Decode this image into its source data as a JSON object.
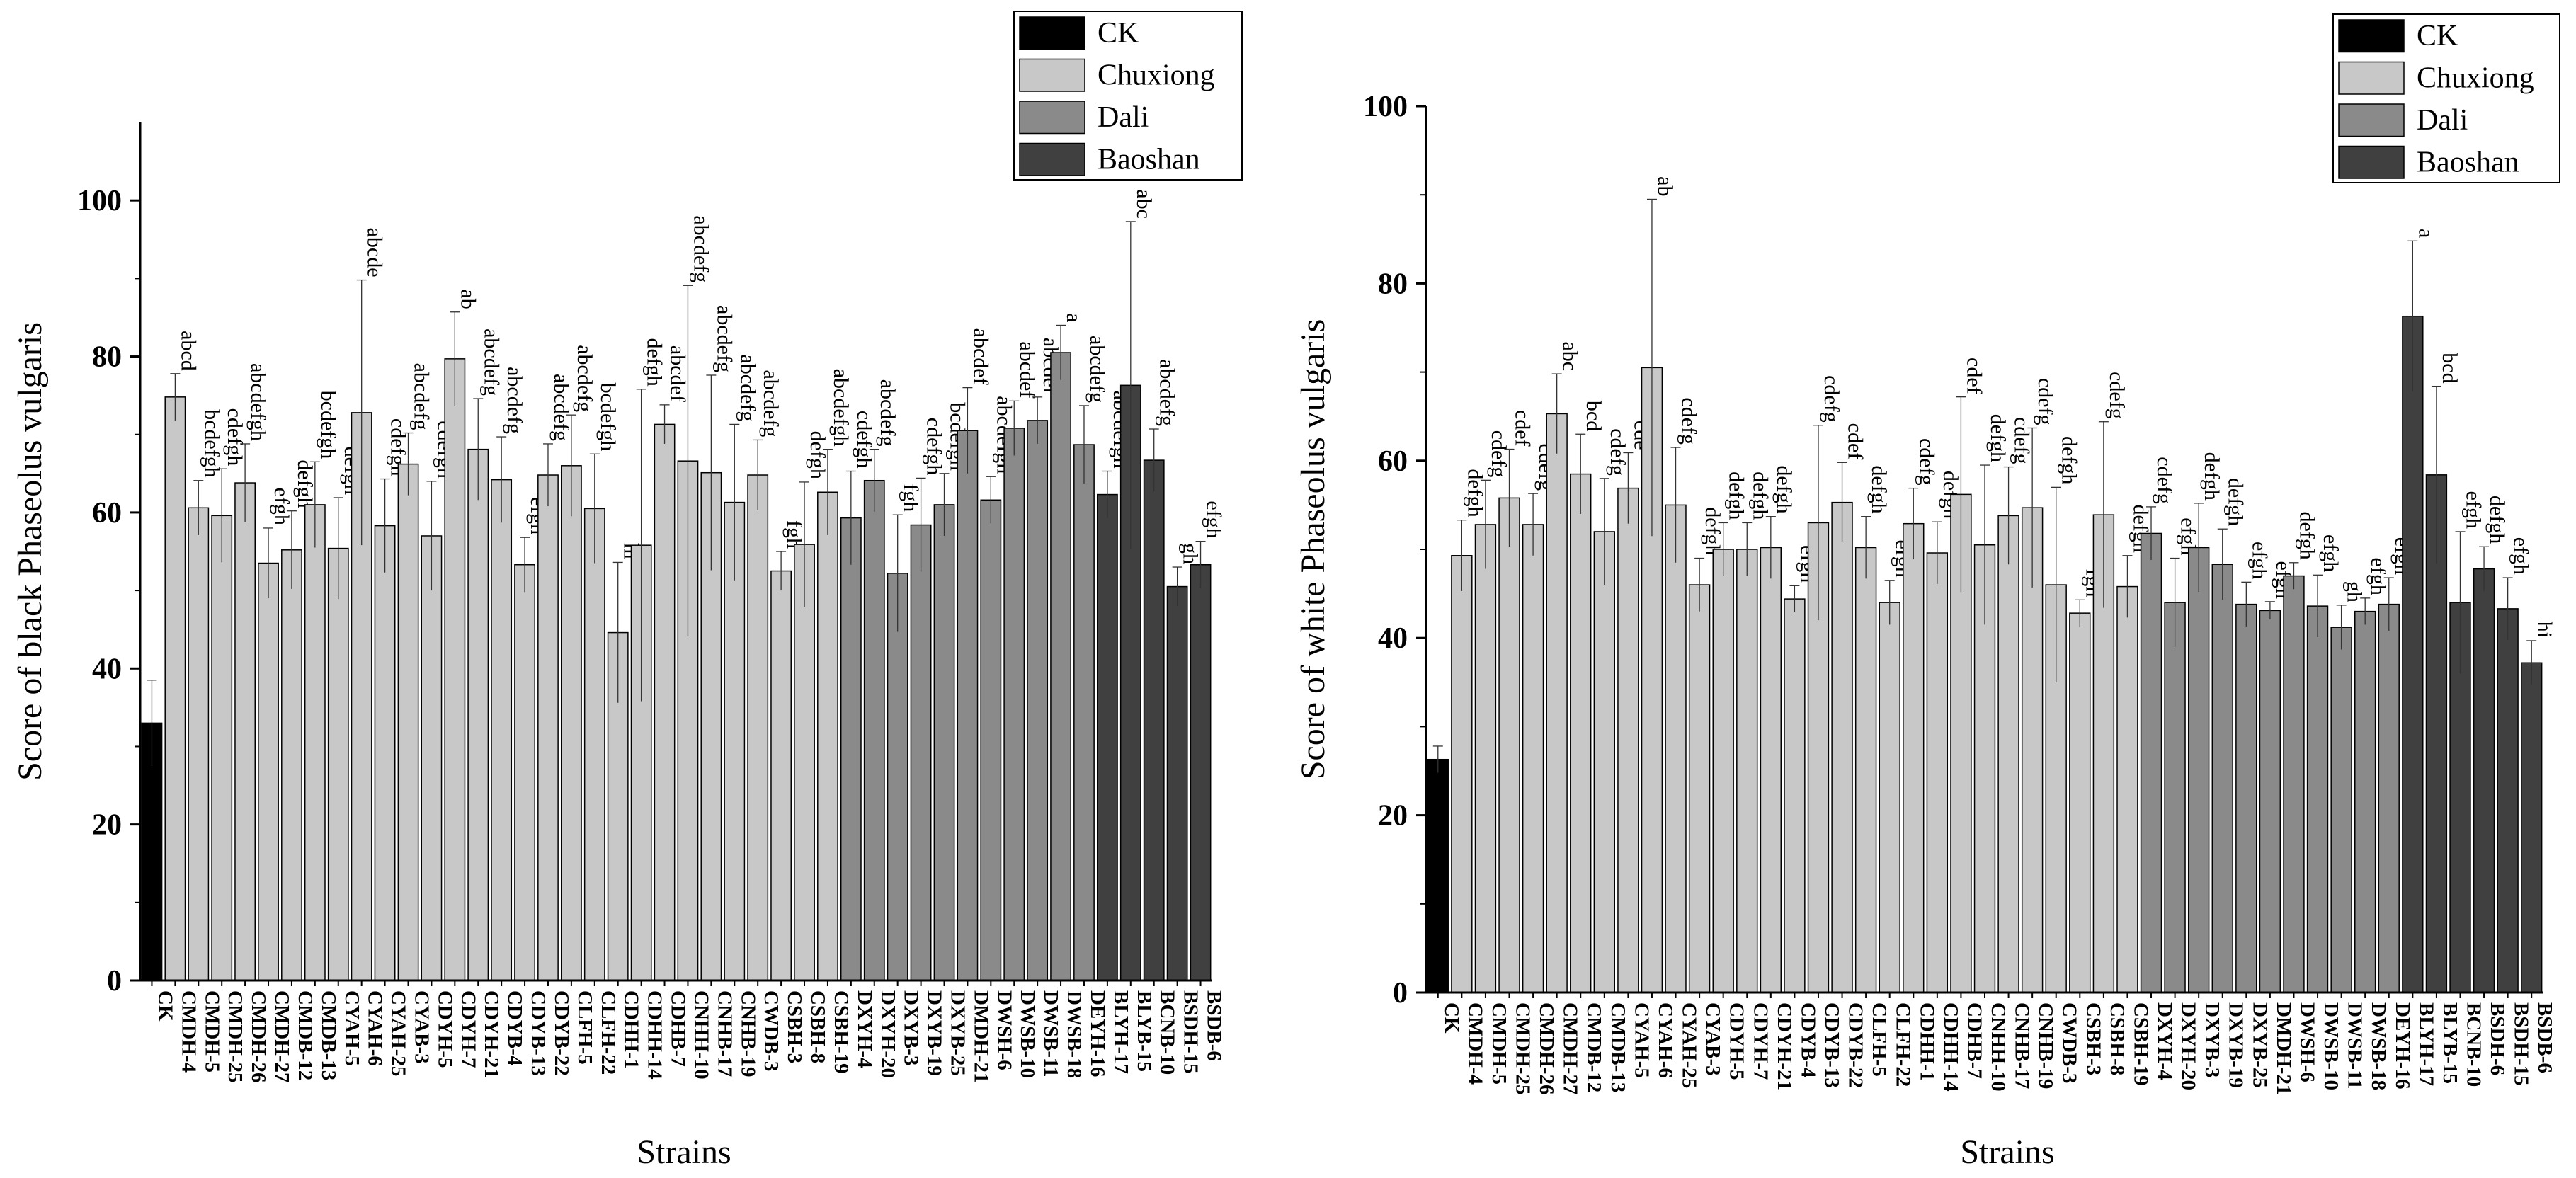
{
  "charts": [
    {
      "type": "bar",
      "title": "",
      "xlabel": "Strains",
      "ylabel": "Score of black Phaseolus vulgaris",
      "ylim": [
        0,
        110
      ],
      "yticks": [
        0,
        20,
        40,
        60,
        80,
        100
      ],
      "legend_position": "top-right",
      "legend": [
        {
          "name": "CK",
          "color": "#000000"
        },
        {
          "name": "Chuxiong",
          "color": "#c8c8c8"
        },
        {
          "name": "Dali",
          "color": "#8a8a8a"
        },
        {
          "name": "Baoshan",
          "color": "#404040"
        }
      ],
      "categories": [
        "CK",
        "CMDH-4",
        "CMDH-5",
        "CMDH-25",
        "CMDH-26",
        "CMDH-27",
        "CMDB-12",
        "CMDB-13",
        "CYAH-5",
        "CYAH-6",
        "CYAH-25",
        "CYAB-3",
        "CDYH-5",
        "CDYH-7",
        "CDYH-21",
        "CDYB-4",
        "CDYB-13",
        "CDYB-22",
        "CLFH-5",
        "CLFH-22",
        "CDHH-1",
        "CDHH-14",
        "CDHB-7",
        "CNHH-10",
        "CNHB-17",
        "CNHB-19",
        "CWDB-3",
        "CSBH-3",
        "CSBH-8",
        "CSBH-19",
        "DXYH-4",
        "DXYH-20",
        "DXYB-3",
        "DXYB-19",
        "DXYB-25",
        "DMDH-21",
        "DWSH-6",
        "DWSB-10",
        "DWSB-11",
        "DWSB-18",
        "DEYH-16",
        "BLYH-17",
        "BLYB-15",
        "BCNB-10",
        "BSDH-15",
        "BSDB-6"
      ],
      "groups": [
        "CK",
        "Chuxiong",
        "Chuxiong",
        "Chuxiong",
        "Chuxiong",
        "Chuxiong",
        "Chuxiong",
        "Chuxiong",
        "Chuxiong",
        "Chuxiong",
        "Chuxiong",
        "Chuxiong",
        "Chuxiong",
        "Chuxiong",
        "Chuxiong",
        "Chuxiong",
        "Chuxiong",
        "Chuxiong",
        "Chuxiong",
        "Chuxiong",
        "Chuxiong",
        "Chuxiong",
        "Chuxiong",
        "Chuxiong",
        "Chuxiong",
        "Chuxiong",
        "Chuxiong",
        "Chuxiong",
        "Chuxiong",
        "Chuxiong",
        "Dali",
        "Dali",
        "Dali",
        "Dali",
        "Dali",
        "Dali",
        "Dali",
        "Dali",
        "Dali",
        "Dali",
        "Dali",
        "Baoshan",
        "Baoshan",
        "Baoshan",
        "Baoshan",
        "Baoshan"
      ],
      "values": [
        33.0,
        74.8,
        60.6,
        59.6,
        63.8,
        53.5,
        55.2,
        61.0,
        55.4,
        72.8,
        58.3,
        66.2,
        57.0,
        79.7,
        68.1,
        64.2,
        53.3,
        64.8,
        66.0,
        60.5,
        44.6,
        55.8,
        71.3,
        66.6,
        65.1,
        61.3,
        64.8,
        52.5,
        55.9,
        62.6,
        59.3,
        64.1,
        52.2,
        58.4,
        61.0,
        70.5,
        61.6,
        70.8,
        71.8,
        80.5,
        68.7,
        62.3,
        76.3,
        66.7,
        50.5,
        53.3
      ],
      "errors": [
        5.5,
        3.0,
        3.5,
        6.0,
        5.0,
        4.5,
        5.0,
        5.5,
        6.5,
        17.0,
        6.0,
        4.0,
        7.0,
        6.0,
        6.5,
        5.5,
        3.5,
        4.0,
        6.5,
        7.0,
        9.0,
        20.0,
        2.5,
        22.5,
        12.5,
        10.0,
        4.5,
        2.5,
        8.0,
        5.5,
        6.0,
        4.0,
        7.5,
        6.0,
        4.0,
        5.5,
        3.0,
        3.5,
        3.0,
        3.5,
        5.0,
        3.0,
        21.0,
        4.0,
        2.5,
        3.0
      ],
      "letters": [
        "",
        "abcd",
        "bcdefgh",
        "cdefgh",
        "abcdefgh",
        "efgh",
        "defgh",
        "bcdefgh",
        "defgh",
        "abcde",
        "cdefgh",
        "abcdefg",
        "cdefgh",
        "ab",
        "abcdefg",
        "abcdefg",
        "efgh",
        "abcdefg",
        "abcdefg",
        "bcdefgh",
        "hi",
        "defgh",
        "abcdef",
        "abcdefg",
        "abcdefg",
        "abcdefg",
        "abcdefg",
        "fgh",
        "defgh",
        "abcdefgh",
        "cdefgh",
        "abcdefg",
        "fgh",
        "cdefgh",
        "bcdefgh",
        "abcdef",
        "abcdefgh",
        "abcdef",
        "abcdef",
        "a",
        "abcdefg",
        "abcdefgh",
        "abc",
        "abcdefg",
        "gh",
        "efgh"
      ]
    },
    {
      "type": "bar",
      "title": "",
      "xlabel": "Strains",
      "ylabel": "Score of white Phaseolus vulgaris",
      "ylim": [
        0,
        100
      ],
      "yticks": [
        0,
        20,
        40,
        60,
        80,
        100
      ],
      "legend_position": "top-right",
      "legend": [
        {
          "name": "CK",
          "color": "#000000"
        },
        {
          "name": "Chuxiong",
          "color": "#c8c8c8"
        },
        {
          "name": "Dali",
          "color": "#8a8a8a"
        },
        {
          "name": "Baoshan",
          "color": "#404040"
        }
      ],
      "categories": [
        "CK",
        "CMDH-4",
        "CMDH-5",
        "CMDH-25",
        "CMDH-26",
        "CMDH-27",
        "CMDB-12",
        "CMDB-13",
        "CYAH-5",
        "CYAH-6",
        "CYAH-25",
        "CYAB-3",
        "CDYH-5",
        "CDYH-7",
        "CDYH-21",
        "CDYB-4",
        "CDYB-13",
        "CDYB-22",
        "CLFH-5",
        "CLFH-22",
        "CDHH-1",
        "CDHH-14",
        "CDHB-7",
        "CNHH-10",
        "CNHB-17",
        "CNHB-19",
        "CWDB-3",
        "CSBH-3",
        "CSBH-8",
        "CSBH-19",
        "DXYH-4",
        "DXYH-20",
        "DXYB-3",
        "DXYB-19",
        "DXYB-25",
        "DMDH-21",
        "DWSH-6",
        "DWSB-10",
        "DWSB-11",
        "DWSB-18",
        "DEYH-16",
        "BLYH-17",
        "BLYB-15",
        "BCNB-10",
        "BSDH-6",
        "BSDH-15",
        "BSDB-6"
      ],
      "groups": [
        "CK",
        "Chuxiong",
        "Chuxiong",
        "Chuxiong",
        "Chuxiong",
        "Chuxiong",
        "Chuxiong",
        "Chuxiong",
        "Chuxiong",
        "Chuxiong",
        "Chuxiong",
        "Chuxiong",
        "Chuxiong",
        "Chuxiong",
        "Chuxiong",
        "Chuxiong",
        "Chuxiong",
        "Chuxiong",
        "Chuxiong",
        "Chuxiong",
        "Chuxiong",
        "Chuxiong",
        "Chuxiong",
        "Chuxiong",
        "Chuxiong",
        "Chuxiong",
        "Chuxiong",
        "Chuxiong",
        "Chuxiong",
        "Chuxiong",
        "Dali",
        "Dali",
        "Dali",
        "Dali",
        "Dali",
        "Dali",
        "Dali",
        "Dali",
        "Dali",
        "Dali",
        "Dali",
        "Baoshan",
        "Baoshan",
        "Baoshan",
        "Baoshan",
        "Baoshan",
        "Baoshan"
      ],
      "values": [
        26.3,
        49.3,
        52.8,
        55.8,
        52.8,
        65.3,
        58.5,
        52.0,
        56.9,
        70.5,
        55.0,
        46.0,
        50.0,
        50.0,
        50.2,
        44.4,
        53.0,
        55.3,
        50.2,
        44.0,
        52.9,
        49.6,
        56.2,
        50.5,
        53.8,
        54.7,
        46.0,
        42.8,
        53.9,
        45.8,
        51.8,
        44.0,
        50.2,
        48.3,
        43.8,
        43.1,
        47.0,
        43.6,
        41.2,
        43.0,
        43.8,
        76.3,
        58.4,
        44.0,
        47.8,
        43.3,
        37.2
      ],
      "errors": [
        1.5,
        4.0,
        5.0,
        5.5,
        3.5,
        4.5,
        4.5,
        6.0,
        4.0,
        19.0,
        6.5,
        3.0,
        3.0,
        3.0,
        3.5,
        1.5,
        11.0,
        4.5,
        3.5,
        2.5,
        4.0,
        3.5,
        11.0,
        9.0,
        5.5,
        9.0,
        11.0,
        1.5,
        10.5,
        3.5,
        3.0,
        5.0,
        5.0,
        4.0,
        2.5,
        1.0,
        1.5,
        3.5,
        2.5,
        1.5,
        3.0,
        8.5,
        10.0,
        8.0,
        2.5,
        3.5,
        2.5
      ],
      "letters": [
        "",
        "defgh",
        "cdefg",
        "cdef",
        "cdefg",
        "abc",
        "bcd",
        "cdefg",
        "cde",
        "ab",
        "cdefg",
        "defgh",
        "defgh",
        "defgh",
        "defgh",
        "efgh",
        "cdefg",
        "cdef",
        "defgh",
        "efgh",
        "cdefg",
        "defgh",
        "cdef",
        "defgh",
        "cdefg",
        "cdefg",
        "defgh",
        "fgh",
        "cdefg",
        "defgh",
        "cdefg",
        "efgh",
        "defgh",
        "defgh",
        "efgh",
        "efgh",
        "defgh",
        "efgh",
        "gh",
        "efgh",
        "efgh",
        "a",
        "bcd",
        "efgh",
        "defgh",
        "efgh",
        "hi"
      ]
    }
  ]
}
